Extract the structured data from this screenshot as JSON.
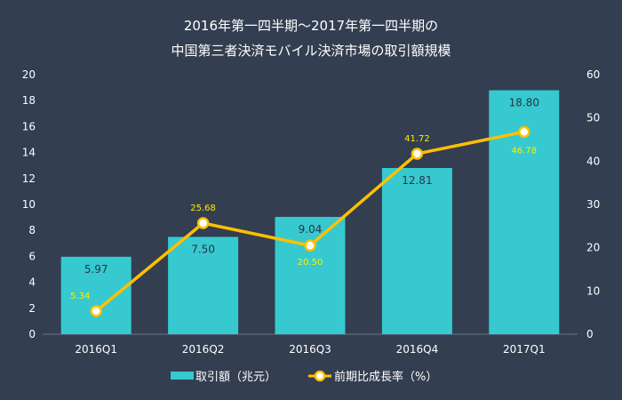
{
  "chart_data": {
    "type": "bar+line",
    "title_lines": [
      "2016年第一四半期～2017年第一四半期の",
      "中国第三者決済モバイル決済市場の取引額規模"
    ],
    "categories": [
      "2016Q1",
      "2016Q2",
      "2016Q3",
      "2016Q4",
      "2017Q1"
    ],
    "series": [
      {
        "name": "取引額（兆元）",
        "type": "bar",
        "axis": "left",
        "values": [
          5.97,
          7.5,
          9.04,
          12.81,
          18.8
        ],
        "labels": [
          "5.97",
          "7.50",
          "9.04",
          "12.81",
          "18.80"
        ],
        "color": "#36c9cf"
      },
      {
        "name": "前期比成長率（%）",
        "type": "line",
        "axis": "right",
        "values": [
          5.34,
          25.68,
          20.5,
          41.72,
          46.78
        ],
        "labels": [
          "5.34",
          "25.68",
          "20.50",
          "41.72",
          "46.78"
        ],
        "color": "#ffc000"
      }
    ],
    "y_left": {
      "range": [
        0,
        20
      ],
      "ticks": [
        "0",
        "2",
        "4",
        "6",
        "8",
        "10",
        "12",
        "14",
        "16",
        "18",
        "20"
      ]
    },
    "y_right": {
      "range": [
        0,
        60
      ],
      "ticks": [
        "0",
        "10",
        "20",
        "30",
        "40",
        "50",
        "60"
      ]
    },
    "grid": false,
    "legend": "bottom",
    "background": "#333e50",
    "label_color_line": "#ffee00"
  }
}
